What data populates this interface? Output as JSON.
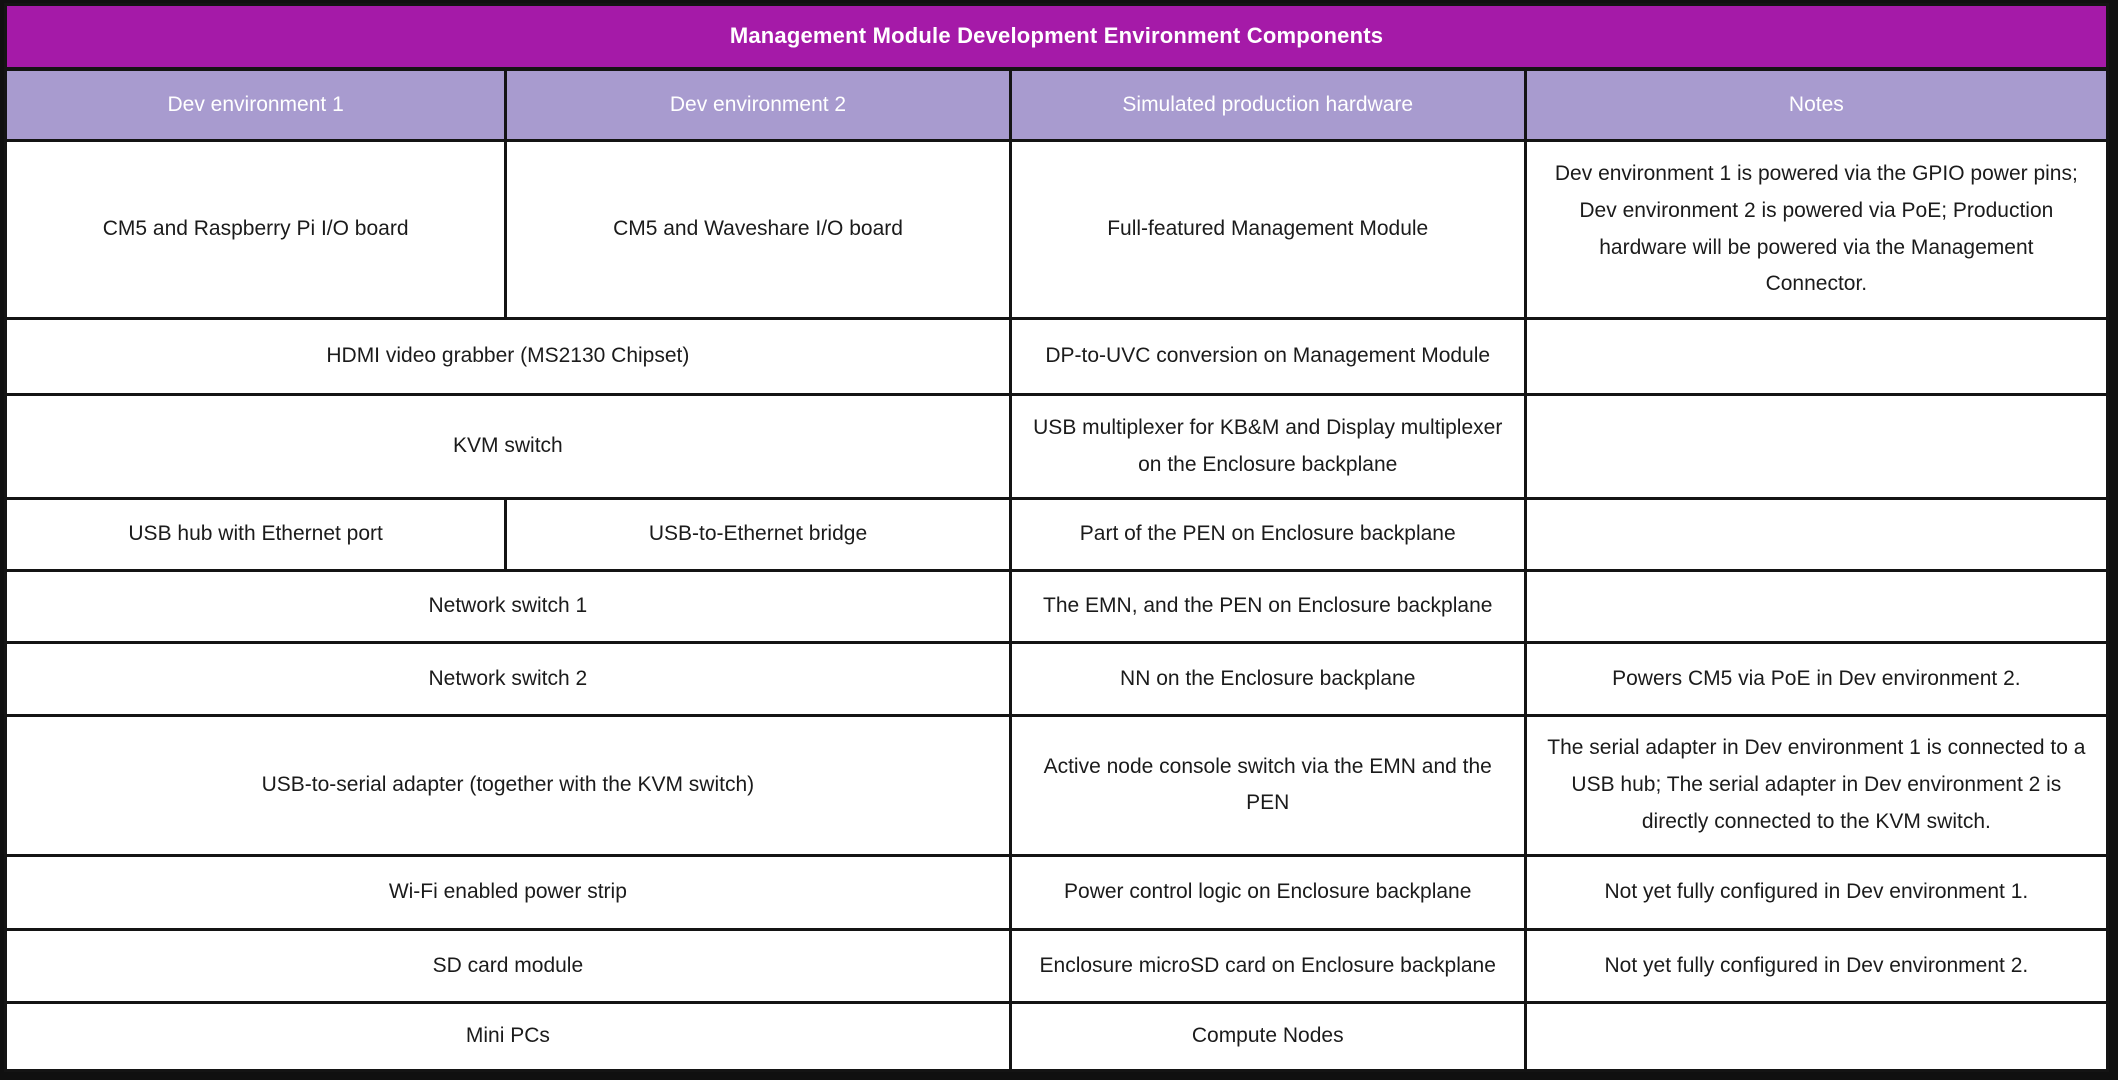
{
  "title": "Management Module Development Environment Components",
  "headers": {
    "dev1": "Dev environment 1",
    "dev2": "Dev environment 2",
    "sim": "Simulated production hardware",
    "notes": "Notes"
  },
  "rows": [
    {
      "dev1": "CM5 and Raspberry Pi I/O board",
      "dev2": "CM5 and Waveshare I/O board",
      "sim": "Full-featured Management Module",
      "notes": "Dev environment 1 is powered via the GPIO power pins; Dev environment 2 is powered via PoE; Production hardware will be powered via the Management Connector."
    },
    {
      "dev": "HDMI video grabber (MS2130 Chipset)",
      "sim": "DP-to-UVC conversion on Management Module",
      "notes": ""
    },
    {
      "dev": "KVM switch",
      "sim": "USB multiplexer for KB&M and Display multiplexer on the Enclosure backplane",
      "notes": ""
    },
    {
      "dev1": "USB hub with Ethernet port",
      "dev2": "USB-to-Ethernet bridge",
      "sim": "Part of the PEN on Enclosure backplane",
      "notes": ""
    },
    {
      "dev": "Network switch 1",
      "sim": "The EMN, and the PEN on Enclosure backplane",
      "notes": ""
    },
    {
      "dev": "Network switch 2",
      "sim": "NN on the Enclosure backplane",
      "notes": "Powers CM5 via PoE in Dev environment 2."
    },
    {
      "dev": "USB-to-serial adapter (together with the KVM switch)",
      "sim": "Active node console switch via the EMN and the PEN",
      "notes": "The serial adapter in Dev environment 1 is connected to a USB hub; The serial adapter in Dev environment 2 is directly connected to the KVM switch."
    },
    {
      "dev": "Wi-Fi enabled power strip",
      "sim": "Power control logic on Enclosure backplane",
      "notes": "Not yet fully configured in Dev environment 1."
    },
    {
      "dev": "SD card module",
      "sim": "Enclosure microSD card on Enclosure backplane",
      "notes": "Not yet fully configured in Dev environment 2."
    },
    {
      "dev": "Mini PCs",
      "sim": "Compute Nodes",
      "notes": ""
    }
  ],
  "colors": {
    "title_bg": "#a51aa8",
    "header_bg": "#a89bcf",
    "border": "#141414",
    "title_text": "#ffffff",
    "header_text": "#ffffff",
    "body_text": "#1b1b1b",
    "cell_bg": "#ffffff"
  }
}
